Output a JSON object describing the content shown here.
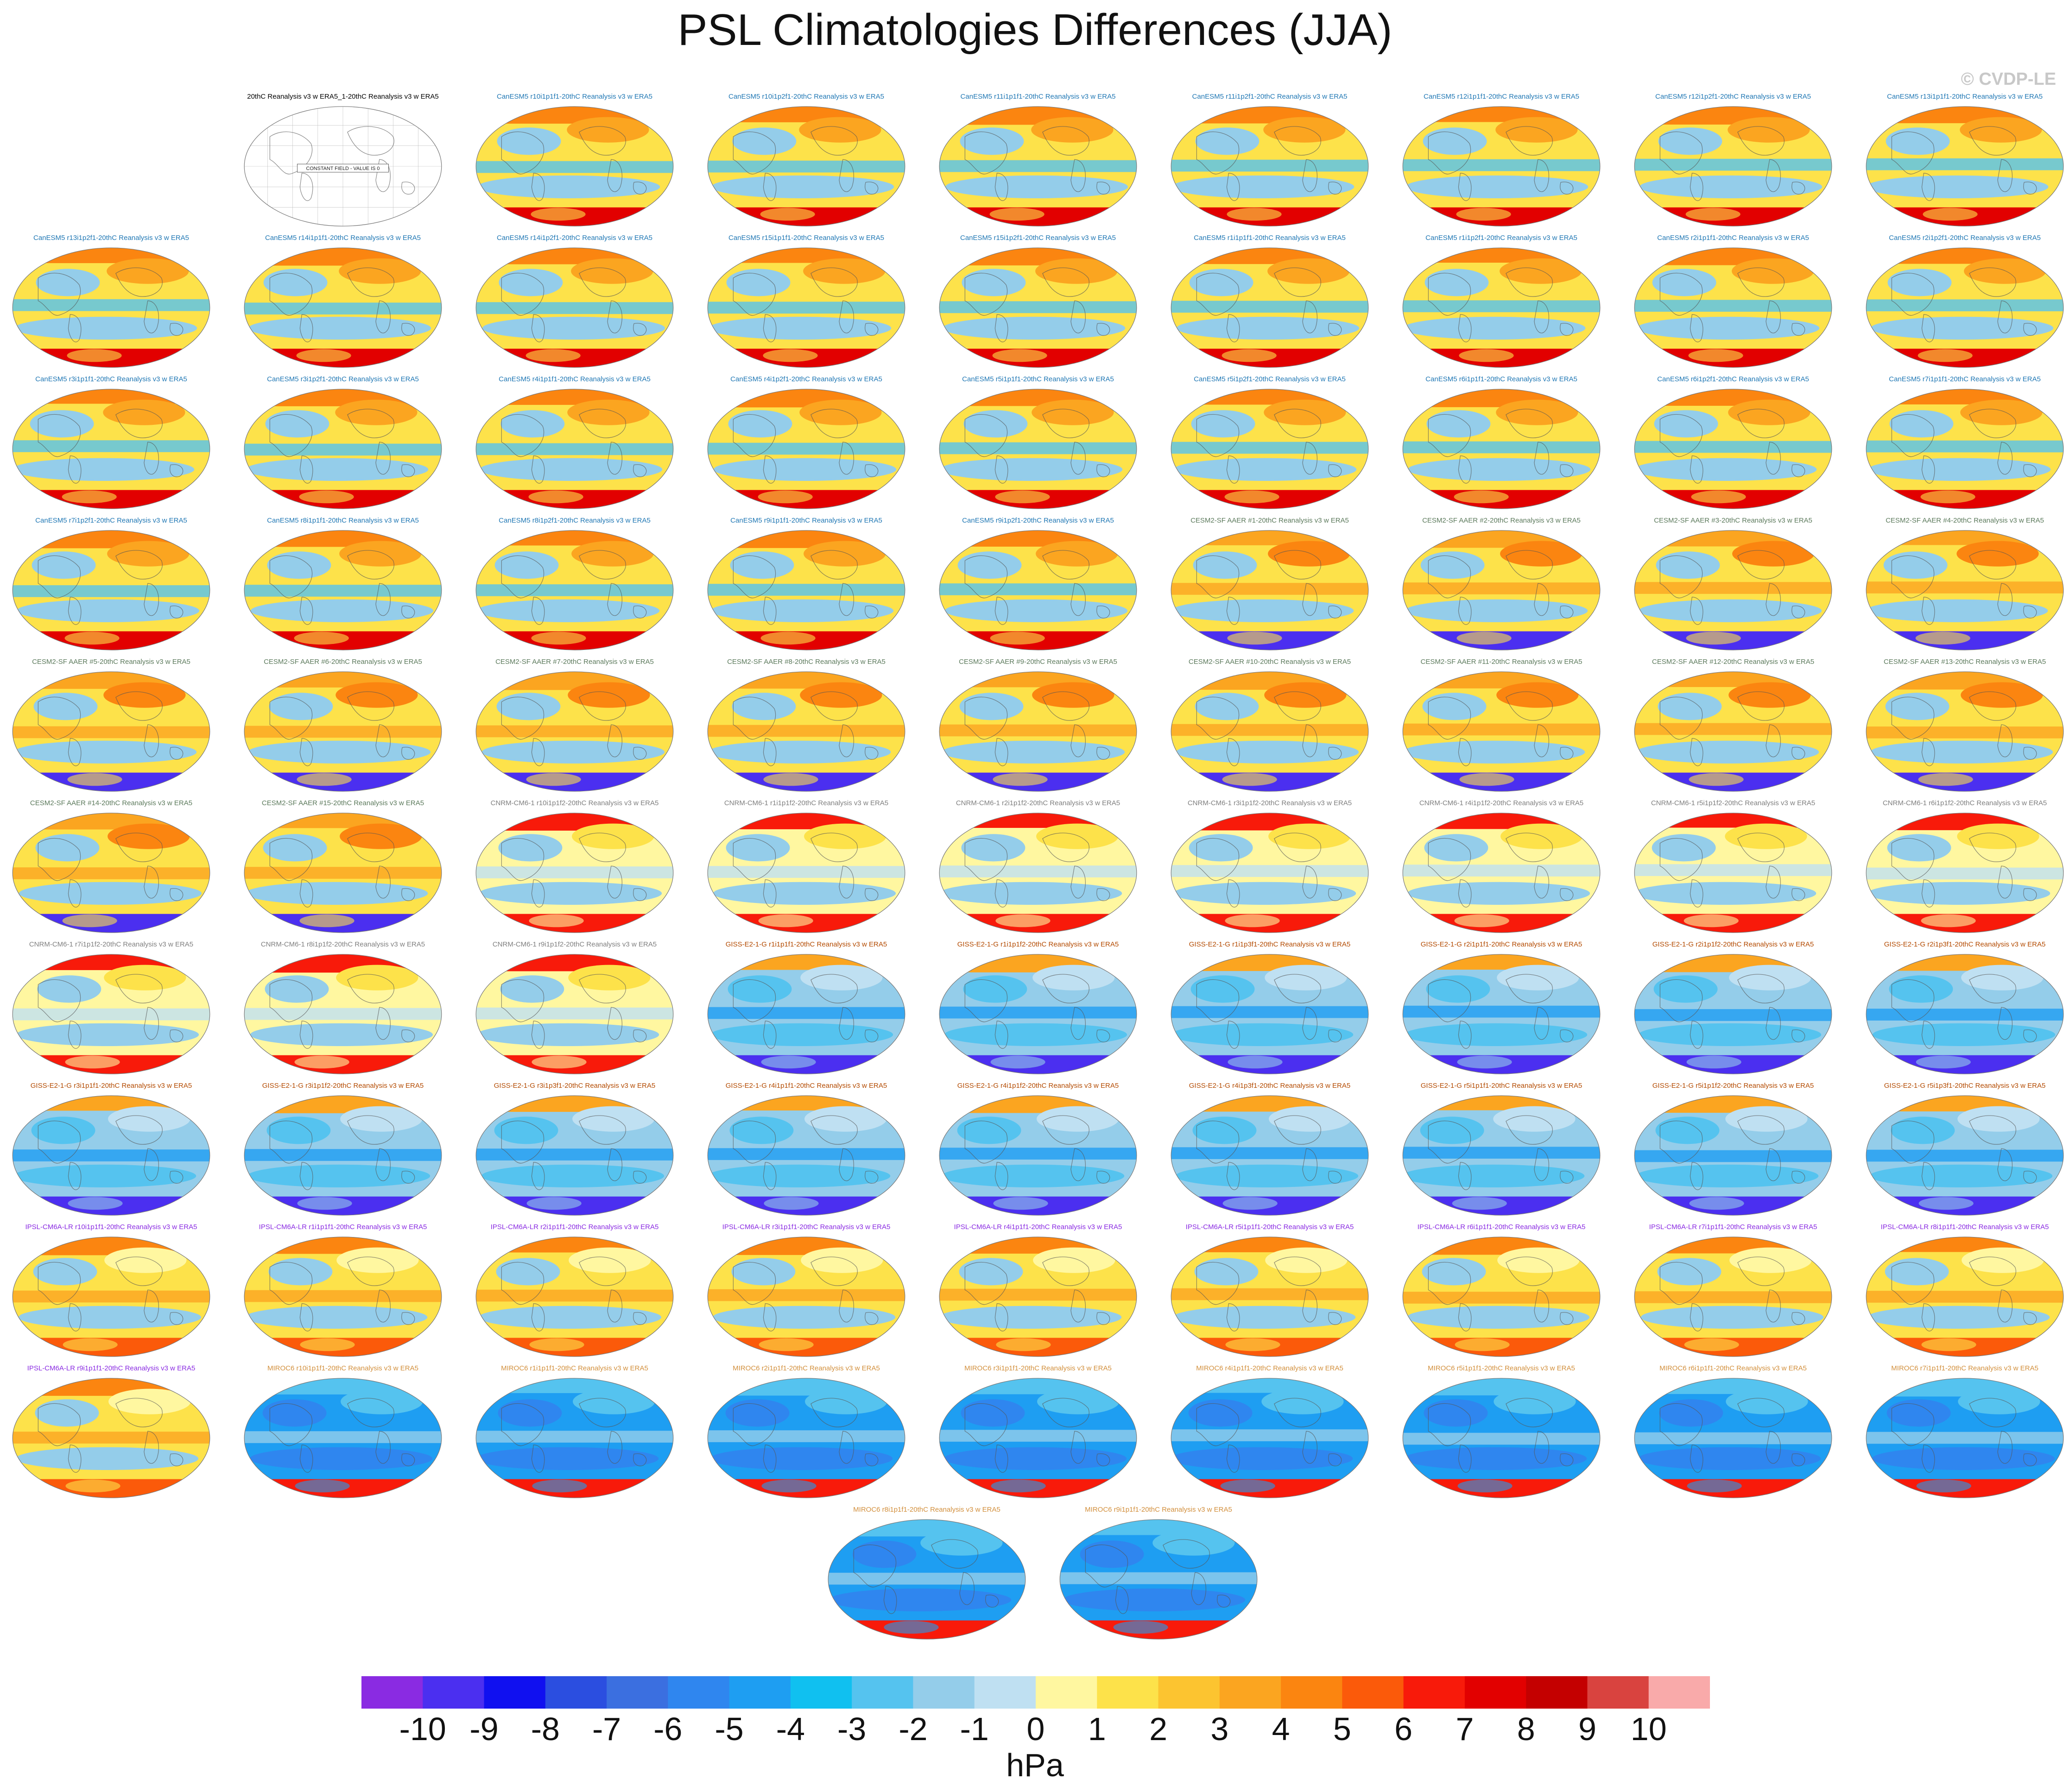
{
  "title": "PSL Climatologies Differences (JJA)",
  "copyright": "© CVDP-LE",
  "units": "hPa",
  "colorbar": {
    "tick_labels": [
      "-10",
      "-9",
      "-8",
      "-7",
      "-6",
      "-5",
      "-4",
      "-3",
      "-2",
      "-1",
      "0",
      "1",
      "2",
      "3",
      "4",
      "5",
      "6",
      "7",
      "8",
      "9",
      "10"
    ],
    "colors": [
      "#8a2be2",
      "#4b2ff0",
      "#1010f0",
      "#2b4ee0",
      "#3b6fe0",
      "#2f86ef",
      "#1e9ef2",
      "#10c0f0",
      "#55c3ef",
      "#94cdea",
      "#bfe0f2",
      "#fff7a0",
      "#fde24a",
      "#fcc430",
      "#fba520",
      "#fb8510",
      "#fb5a0a",
      "#f81a0a",
      "#e20000",
      "#c40000",
      "#d9433f",
      "#f9aaaa"
    ]
  },
  "panels": [
    {
      "label": "20thC Reanalysis v3 w ERA5_1-20thC Reanalysis v3 w ERA5",
      "group": "obs",
      "note": "CONSTANT FIELD - VALUE IS 0"
    },
    {
      "label": "CanESM5 r10i1p1f1-20thC Reanalysis v3 w ERA5",
      "group": "canesm5"
    },
    {
      "label": "CanESM5 r10i1p2f1-20thC Reanalysis v3 w ERA5",
      "group": "canesm5"
    },
    {
      "label": "CanESM5 r11i1p1f1-20thC Reanalysis v3 w ERA5",
      "group": "canesm5"
    },
    {
      "label": "CanESM5 r11i1p2f1-20thC Reanalysis v3 w ERA5",
      "group": "canesm5"
    },
    {
      "label": "CanESM5 r12i1p1f1-20thC Reanalysis v3 w ERA5",
      "group": "canesm5"
    },
    {
      "label": "CanESM5 r12i1p2f1-20thC Reanalysis v3 w ERA5",
      "group": "canesm5"
    },
    {
      "label": "CanESM5 r13i1p1f1-20thC Reanalysis v3 w ERA5",
      "group": "canesm5"
    },
    {
      "label": "CanESM5 r13i1p2f1-20thC Reanalysis v3 w ERA5",
      "group": "canesm5"
    },
    {
      "label": "CanESM5 r14i1p1f1-20thC Reanalysis v3 w ERA5",
      "group": "canesm5"
    },
    {
      "label": "CanESM5 r14i1p2f1-20thC Reanalysis v3 w ERA5",
      "group": "canesm5"
    },
    {
      "label": "CanESM5 r15i1p1f1-20thC Reanalysis v3 w ERA5",
      "group": "canesm5"
    },
    {
      "label": "CanESM5 r15i1p2f1-20thC Reanalysis v3 w ERA5",
      "group": "canesm5"
    },
    {
      "label": "CanESM5 r1i1p1f1-20thC Reanalysis v3 w ERA5",
      "group": "canesm5"
    },
    {
      "label": "CanESM5 r1i1p2f1-20thC Reanalysis v3 w ERA5",
      "group": "canesm5"
    },
    {
      "label": "CanESM5 r2i1p1f1-20thC Reanalysis v3 w ERA5",
      "group": "canesm5"
    },
    {
      "label": "CanESM5 r2i1p2f1-20thC Reanalysis v3 w ERA5",
      "group": "canesm5"
    },
    {
      "label": "CanESM5 r3i1p1f1-20thC Reanalysis v3 w ERA5",
      "group": "canesm5"
    },
    {
      "label": "CanESM5 r3i1p2f1-20thC Reanalysis v3 w ERA5",
      "group": "canesm5"
    },
    {
      "label": "CanESM5 r4i1p1f1-20thC Reanalysis v3 w ERA5",
      "group": "canesm5"
    },
    {
      "label": "CanESM5 r4i1p2f1-20thC Reanalysis v3 w ERA5",
      "group": "canesm5"
    },
    {
      "label": "CanESM5 r5i1p1f1-20thC Reanalysis v3 w ERA5",
      "group": "canesm5"
    },
    {
      "label": "CanESM5 r5i1p2f1-20thC Reanalysis v3 w ERA5",
      "group": "canesm5"
    },
    {
      "label": "CanESM5 r6i1p1f1-20thC Reanalysis v3 w ERA5",
      "group": "canesm5"
    },
    {
      "label": "CanESM5 r6i1p2f1-20thC Reanalysis v3 w ERA5",
      "group": "canesm5"
    },
    {
      "label": "CanESM5 r7i1p1f1-20thC Reanalysis v3 w ERA5",
      "group": "canesm5"
    },
    {
      "label": "CanESM5 r7i1p2f1-20thC Reanalysis v3 w ERA5",
      "group": "canesm5"
    },
    {
      "label": "CanESM5 r8i1p1f1-20thC Reanalysis v3 w ERA5",
      "group": "canesm5"
    },
    {
      "label": "CanESM5 r8i1p2f1-20thC Reanalysis v3 w ERA5",
      "group": "canesm5"
    },
    {
      "label": "CanESM5 r9i1p1f1-20thC Reanalysis v3 w ERA5",
      "group": "canesm5"
    },
    {
      "label": "CanESM5 r9i1p2f1-20thC Reanalysis v3 w ERA5",
      "group": "canesm5"
    },
    {
      "label": "CESM2-SF AAER #1-20thC Reanalysis v3 w ERA5",
      "group": "cesm2"
    },
    {
      "label": "CESM2-SF AAER #2-20thC Reanalysis v3 w ERA5",
      "group": "cesm2"
    },
    {
      "label": "CESM2-SF AAER #3-20thC Reanalysis v3 w ERA5",
      "group": "cesm2"
    },
    {
      "label": "CESM2-SF AAER #4-20thC Reanalysis v3 w ERA5",
      "group": "cesm2"
    },
    {
      "label": "CESM2-SF AAER #5-20thC Reanalysis v3 w ERA5",
      "group": "cesm2"
    },
    {
      "label": "CESM2-SF AAER #6-20thC Reanalysis v3 w ERA5",
      "group": "cesm2"
    },
    {
      "label": "CESM2-SF AAER #7-20thC Reanalysis v3 w ERA5",
      "group": "cesm2"
    },
    {
      "label": "CESM2-SF AAER #8-20thC Reanalysis v3 w ERA5",
      "group": "cesm2"
    },
    {
      "label": "CESM2-SF AAER #9-20thC Reanalysis v3 w ERA5",
      "group": "cesm2"
    },
    {
      "label": "CESM2-SF AAER #10-20thC Reanalysis v3 w ERA5",
      "group": "cesm2"
    },
    {
      "label": "CESM2-SF AAER #11-20thC Reanalysis v3 w ERA5",
      "group": "cesm2"
    },
    {
      "label": "CESM2-SF AAER #12-20thC Reanalysis v3 w ERA5",
      "group": "cesm2"
    },
    {
      "label": "CESM2-SF AAER #13-20thC Reanalysis v3 w ERA5",
      "group": "cesm2"
    },
    {
      "label": "CESM2-SF AAER #14-20thC Reanalysis v3 w ERA5",
      "group": "cesm2"
    },
    {
      "label": "CESM2-SF AAER #15-20thC Reanalysis v3 w ERA5",
      "group": "cesm2"
    },
    {
      "label": "CNRM-CM6-1 r10i1p1f2-20thC Reanalysis v3 w ERA5",
      "group": "cnrm"
    },
    {
      "label": "CNRM-CM6-1 r1i1p1f2-20thC Reanalysis v3 w ERA5",
      "group": "cnrm"
    },
    {
      "label": "CNRM-CM6-1 r2i1p1f2-20thC Reanalysis v3 w ERA5",
      "group": "cnrm"
    },
    {
      "label": "CNRM-CM6-1 r3i1p1f2-20thC Reanalysis v3 w ERA5",
      "group": "cnrm"
    },
    {
      "label": "CNRM-CM6-1 r4i1p1f2-20thC Reanalysis v3 w ERA5",
      "group": "cnrm"
    },
    {
      "label": "CNRM-CM6-1 r5i1p1f2-20thC Reanalysis v3 w ERA5",
      "group": "cnrm"
    },
    {
      "label": "CNRM-CM6-1 r6i1p1f2-20thC Reanalysis v3 w ERA5",
      "group": "cnrm"
    },
    {
      "label": "CNRM-CM6-1 r7i1p1f2-20thC Reanalysis v3 w ERA5",
      "group": "cnrm"
    },
    {
      "label": "CNRM-CM6-1 r8i1p1f2-20thC Reanalysis v3 w ERA5",
      "group": "cnrm"
    },
    {
      "label": "CNRM-CM6-1 r9i1p1f2-20thC Reanalysis v3 w ERA5",
      "group": "cnrm"
    },
    {
      "label": "GISS-E2-1-G r1i1p1f1-20thC Reanalysis v3 w ERA5",
      "group": "giss"
    },
    {
      "label": "GISS-E2-1-G r1i1p1f2-20thC Reanalysis v3 w ERA5",
      "group": "giss"
    },
    {
      "label": "GISS-E2-1-G r1i1p3f1-20thC Reanalysis v3 w ERA5",
      "group": "giss"
    },
    {
      "label": "GISS-E2-1-G r2i1p1f1-20thC Reanalysis v3 w ERA5",
      "group": "giss"
    },
    {
      "label": "GISS-E2-1-G r2i1p1f2-20thC Reanalysis v3 w ERA5",
      "group": "giss"
    },
    {
      "label": "GISS-E2-1-G r2i1p3f1-20thC Reanalysis v3 w ERA5",
      "group": "giss"
    },
    {
      "label": "GISS-E2-1-G r3i1p1f1-20thC Reanalysis v3 w ERA5",
      "group": "giss"
    },
    {
      "label": "GISS-E2-1-G r3i1p1f2-20thC Reanalysis v3 w ERA5",
      "group": "giss"
    },
    {
      "label": "GISS-E2-1-G r3i1p3f1-20thC Reanalysis v3 w ERA5",
      "group": "giss"
    },
    {
      "label": "GISS-E2-1-G r4i1p1f1-20thC Reanalysis v3 w ERA5",
      "group": "giss"
    },
    {
      "label": "GISS-E2-1-G r4i1p1f2-20thC Reanalysis v3 w ERA5",
      "group": "giss"
    },
    {
      "label": "GISS-E2-1-G r4i1p3f1-20thC Reanalysis v3 w ERA5",
      "group": "giss"
    },
    {
      "label": "GISS-E2-1-G r5i1p1f1-20thC Reanalysis v3 w ERA5",
      "group": "giss"
    },
    {
      "label": "GISS-E2-1-G r5i1p1f2-20thC Reanalysis v3 w ERA5",
      "group": "giss"
    },
    {
      "label": "GISS-E2-1-G r5i1p3f1-20thC Reanalysis v3 w ERA5",
      "group": "giss"
    },
    {
      "label": "IPSL-CM6A-LR r10i1p1f1-20thC Reanalysis v3 w ERA5",
      "group": "ipsl"
    },
    {
      "label": "IPSL-CM6A-LR r1i1p1f1-20thC Reanalysis v3 w ERA5",
      "group": "ipsl"
    },
    {
      "label": "IPSL-CM6A-LR r2i1p1f1-20thC Reanalysis v3 w ERA5",
      "group": "ipsl"
    },
    {
      "label": "IPSL-CM6A-LR r3i1p1f1-20thC Reanalysis v3 w ERA5",
      "group": "ipsl"
    },
    {
      "label": "IPSL-CM6A-LR r4i1p1f1-20thC Reanalysis v3 w ERA5",
      "group": "ipsl"
    },
    {
      "label": "IPSL-CM6A-LR r5i1p1f1-20thC Reanalysis v3 w ERA5",
      "group": "ipsl"
    },
    {
      "label": "IPSL-CM6A-LR r6i1p1f1-20thC Reanalysis v3 w ERA5",
      "group": "ipsl"
    },
    {
      "label": "IPSL-CM6A-LR r7i1p1f1-20thC Reanalysis v3 w ERA5",
      "group": "ipsl"
    },
    {
      "label": "IPSL-CM6A-LR r8i1p1f1-20thC Reanalysis v3 w ERA5",
      "group": "ipsl"
    },
    {
      "label": "IPSL-CM6A-LR r9i1p1f1-20thC Reanalysis v3 w ERA5",
      "group": "ipsl"
    },
    {
      "label": "MIROC6 r10i1p1f1-20thC Reanalysis v3 w ERA5",
      "group": "miroc"
    },
    {
      "label": "MIROC6 r1i1p1f1-20thC Reanalysis v3 w ERA5",
      "group": "miroc"
    },
    {
      "label": "MIROC6 r2i1p1f1-20thC Reanalysis v3 w ERA5",
      "group": "miroc"
    },
    {
      "label": "MIROC6 r3i1p1f1-20thC Reanalysis v3 w ERA5",
      "group": "miroc"
    },
    {
      "label": "MIROC6 r4i1p1f1-20thC Reanalysis v3 w ERA5",
      "group": "miroc"
    },
    {
      "label": "MIROC6 r5i1p1f1-20thC Reanalysis v3 w ERA5",
      "group": "miroc"
    },
    {
      "label": "MIROC6 r6i1p1f1-20thC Reanalysis v3 w ERA5",
      "group": "miroc"
    },
    {
      "label": "MIROC6 r7i1p1f1-20thC Reanalysis v3 w ERA5",
      "group": "miroc"
    },
    {
      "label": "MIROC6 r8i1p1f1-20thC Reanalysis v3 w ERA5",
      "group": "miroc"
    },
    {
      "label": "MIROC6 r9i1p1f1-20thC Reanalysis v3 w ERA5",
      "group": "miroc"
    }
  ],
  "groups": {
    "obs": {
      "label_color": "#000000",
      "palette": {
        "bg": "#ffffff"
      }
    },
    "canesm5": {
      "label_color": "#1f77b4",
      "palette": {
        "bg": "#fde24a",
        "b1": "#fba520",
        "b2": "#94cdea",
        "b3": "#55c3ef",
        "north": "#fb8510",
        "south": "#e20000"
      }
    },
    "cesm2": {
      "label_color": "#5c7a5c",
      "palette": {
        "bg": "#fde24a",
        "b1": "#fb8510",
        "b2": "#94cdea",
        "b3": "#fba520",
        "north": "#fba520",
        "south": "#4b2ff0"
      }
    },
    "cnrm": {
      "label_color": "#7f7f7f",
      "palette": {
        "bg": "#fff7a0",
        "b1": "#fde24a",
        "b2": "#94cdea",
        "b3": "#bfe0f2",
        "north": "#f81a0a",
        "south": "#f81a0a"
      }
    },
    "giss": {
      "label_color": "#b34a00",
      "palette": {
        "bg": "#94cdea",
        "b1": "#bfe0f2",
        "b2": "#55c3ef",
        "b3": "#1e9ef2",
        "north": "#fba520",
        "south": "#4b2ff0"
      }
    },
    "ipsl": {
      "label_color": "#8a2be2",
      "palette": {
        "bg": "#fde24a",
        "b1": "#fff7a0",
        "b2": "#94cdea",
        "b3": "#fba520",
        "north": "#fb8510",
        "south": "#fb5a0a"
      }
    },
    "miroc": {
      "label_color": "#d28f3c",
      "palette": {
        "bg": "#1e9ef2",
        "b1": "#55c3ef",
        "b2": "#2f86ef",
        "b3": "#94cdea",
        "north": "#55c3ef",
        "south": "#f81a0a"
      }
    }
  }
}
